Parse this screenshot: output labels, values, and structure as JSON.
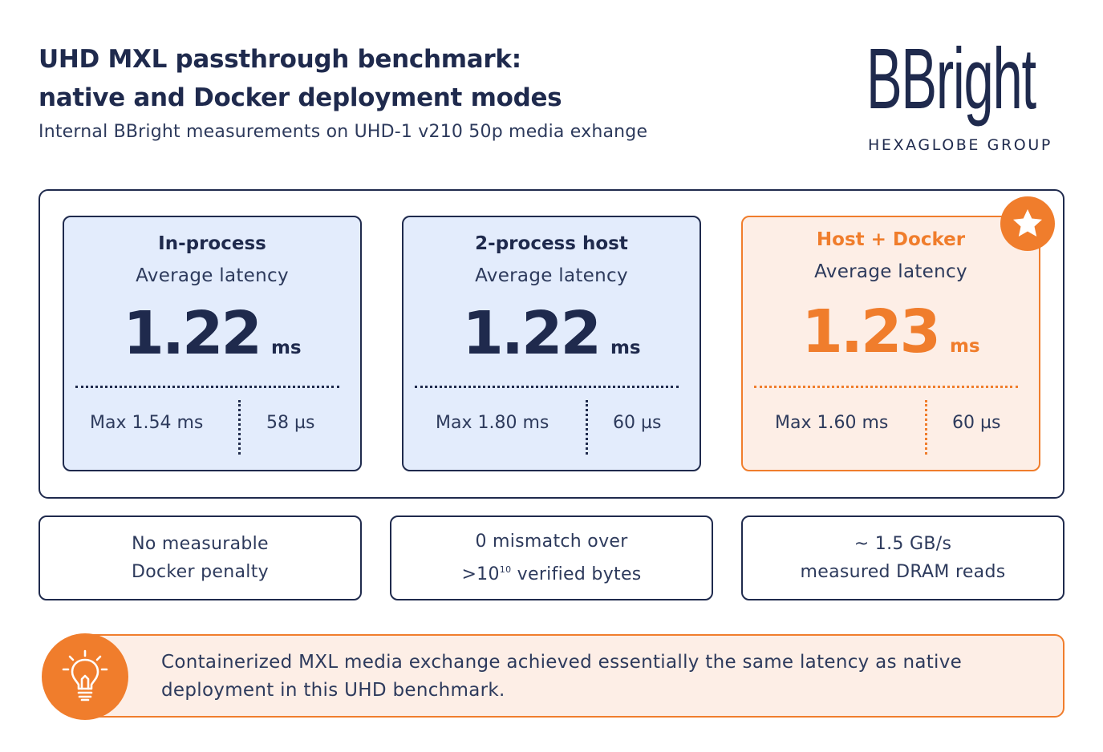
{
  "header": {
    "title_line1": "UHD MXL passthrough benchmark:",
    "title_line2": "native and Docker deployment modes",
    "subtitle": "Internal BBright measurements on UHD-1 v210 50p media exhange"
  },
  "logo": {
    "wordmark": "BBright",
    "tagline": "HEXAGLOBE GROUP"
  },
  "cards": [
    {
      "name": "In-process",
      "metric": "Average latency",
      "value": "1.22",
      "unit": "ms",
      "max": "Max 1.54 ms",
      "jitter": "58 µs"
    },
    {
      "name": "2-process host",
      "metric": "Average latency",
      "value": "1.22",
      "unit": "ms",
      "max": "Max 1.80 ms",
      "jitter": "60 µs"
    },
    {
      "name": "Host + Docker",
      "metric": "Average latency",
      "value": "1.23",
      "unit": "ms",
      "max": "Max 1.60 ms",
      "jitter": "60 µs",
      "highlight_icon": "star-icon"
    }
  ],
  "facts": [
    {
      "line1": "No measurable",
      "line2": "Docker penalty"
    },
    {
      "line1": "0 mismatch over",
      "line2_prefix": ">10",
      "line2_sup": "10",
      "line2_suffix": " verified bytes"
    },
    {
      "line1": "~ 1.5 GB/s",
      "line2": "measured DRAM reads"
    }
  ],
  "callout": {
    "icon": "lightbulb-icon",
    "text": "Containerized MXL media exchange achieved essentially the same latency as native deployment in this UHD benchmark."
  },
  "colors": {
    "navy": "#1f2a4d",
    "orange": "#f07d2c",
    "blue_card": "#e3ecfc",
    "orange_card": "#fdeee6"
  }
}
